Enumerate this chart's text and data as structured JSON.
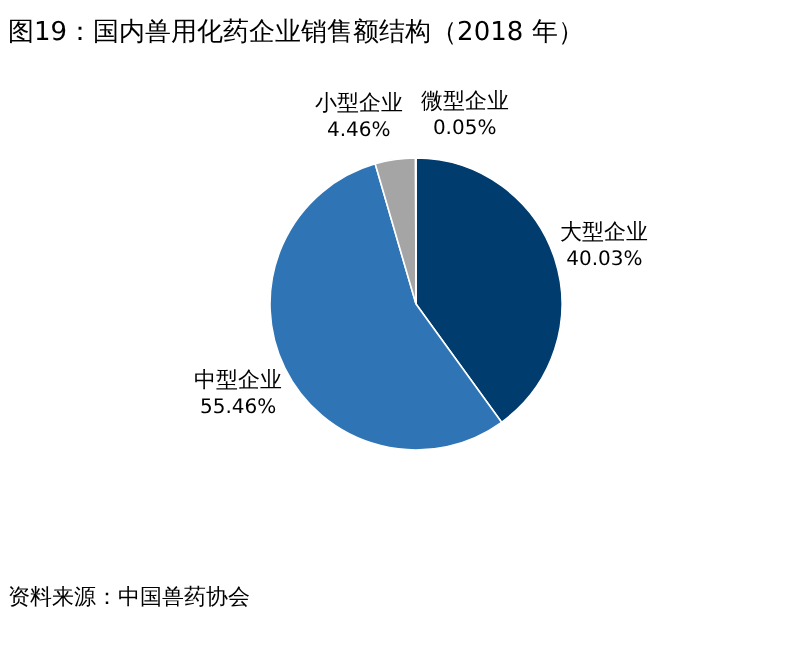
{
  "chart_data": {
    "type": "pie",
    "title": "图19：国内兽用化药企业销售额结构（2018 年）",
    "categories": [
      "大型企业",
      "中型企业",
      "小型企业",
      "微型企业"
    ],
    "values": [
      40.03,
      55.46,
      4.46,
      0.05
    ],
    "colors": [
      "#003d6e",
      "#2f75b5",
      "#a5a5a5",
      "#ffffff"
    ],
    "value_labels": [
      "40.03%",
      "55.46%",
      "4.46%",
      "0.05%"
    ],
    "annotations": [
      "资料来源：中国兽药协会"
    ]
  }
}
